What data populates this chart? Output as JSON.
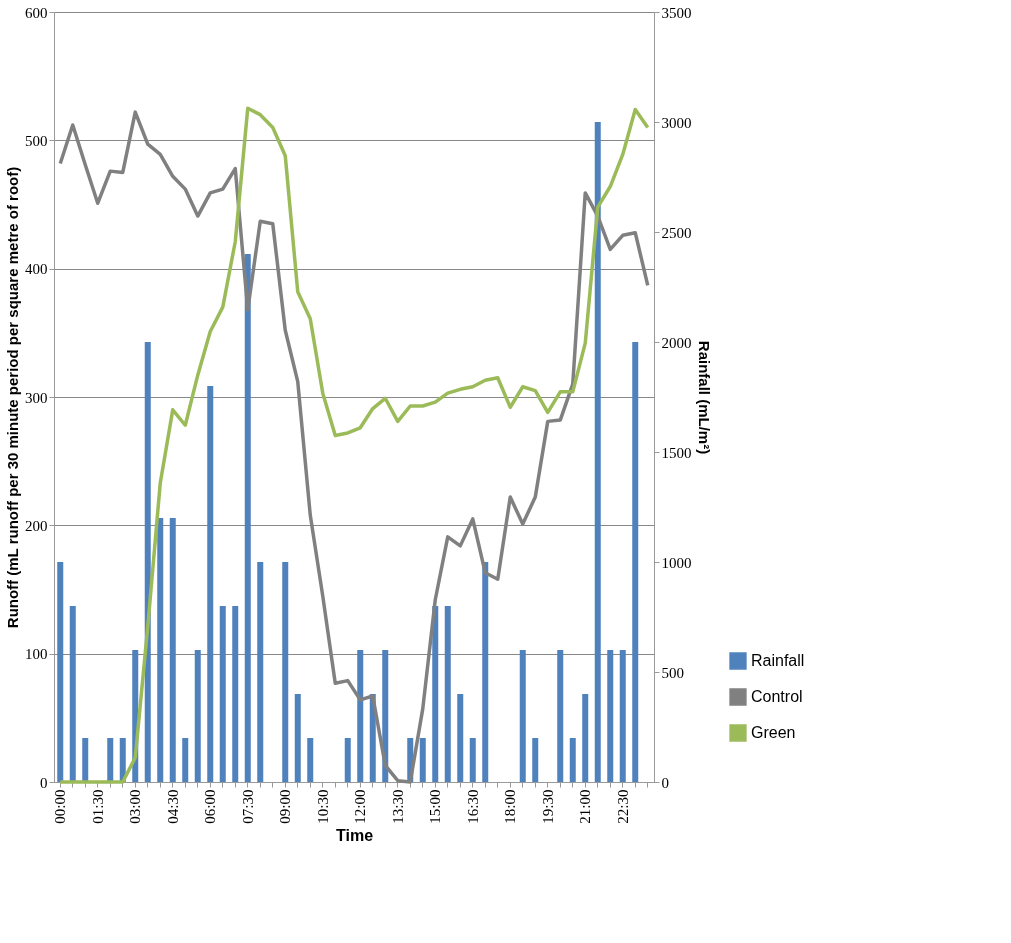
{
  "chart_data": {
    "type": "line",
    "xlabel": "Time",
    "ylabel": "Runoff (mL runoff per 30 minute period per square metre of roof)",
    "y2label": "Rainfall (mL/m²)",
    "categories": [
      "00:00",
      null,
      null,
      "01:30",
      null,
      null,
      "03:00",
      null,
      null,
      "04:30",
      null,
      null,
      "06:00",
      null,
      null,
      "07:30",
      null,
      null,
      "09:00",
      null,
      null,
      "10:30",
      null,
      null,
      "12:00",
      null,
      null,
      "13:30",
      null,
      null,
      "15:00",
      null,
      null,
      "16:30",
      null,
      null,
      "18:00",
      null,
      null,
      "19:30",
      null,
      null,
      "21:00",
      null,
      null,
      "22:30",
      null,
      null
    ],
    "series": [
      {
        "name": "Rainfall",
        "type": "bar",
        "axis": "y2",
        "color": "#4f81bd",
        "values": [
          1000,
          800,
          200,
          null,
          200,
          200,
          600,
          2000,
          1200,
          1200,
          200,
          600,
          1800,
          800,
          800,
          2400,
          1000,
          null,
          1000,
          400,
          200,
          null,
          null,
          200,
          600,
          400,
          600,
          null,
          200,
          200,
          800,
          800,
          400,
          200,
          1000,
          null,
          null,
          600,
          200,
          null,
          600,
          200,
          400,
          3000,
          600,
          600,
          2000,
          null
        ]
      },
      {
        "name": "Control",
        "color": "#808080",
        "values": [
          482,
          512,
          481,
          451,
          476,
          475,
          522,
          497,
          489,
          472,
          462,
          441,
          459,
          462,
          478,
          368,
          437,
          435,
          352,
          312,
          208,
          145,
          77,
          79,
          64,
          67,
          13,
          1,
          0,
          57,
          142,
          191,
          184,
          205,
          163,
          158,
          222,
          201,
          222,
          281,
          282,
          310,
          459,
          441,
          415,
          426,
          428,
          387
        ]
      },
      {
        "name": "Green",
        "color": "#9bbb59",
        "values": [
          0,
          0,
          0,
          0,
          0,
          0,
          19,
          121,
          233,
          290,
          278,
          317,
          351,
          370,
          421,
          525,
          520,
          510,
          488,
          382,
          361,
          303,
          270,
          272,
          276,
          291,
          299,
          281,
          293,
          293,
          296,
          303,
          306,
          308,
          313,
          315,
          292,
          308,
          305,
          288,
          304,
          304,
          342,
          448,
          464,
          489,
          524,
          510
        ]
      }
    ],
    "ylim": [
      0,
      600
    ],
    "yticks": [
      0,
      100,
      200,
      300,
      400,
      500,
      600
    ],
    "y2lim": [
      0,
      3500
    ],
    "y2ticks": [
      0,
      500,
      1000,
      1500,
      2000,
      2500,
      3000,
      3500
    ],
    "grid": "y",
    "legend": "bottom right",
    "marker": "none",
    "line_style": "solid"
  }
}
